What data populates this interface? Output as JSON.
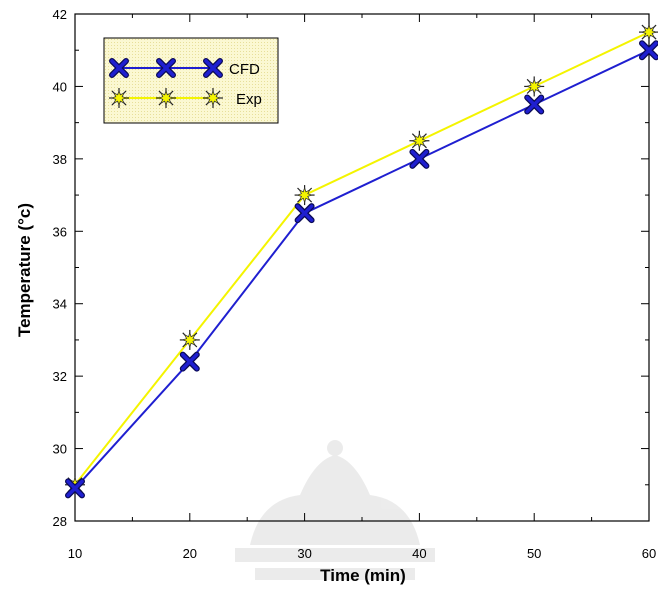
{
  "chart_data": {
    "type": "line",
    "title": "",
    "xlabel": "Time (min)",
    "ylabel": "Temperature (°c)",
    "xlim": [
      10,
      60
    ],
    "ylim": [
      28,
      42
    ],
    "xticks": [
      10,
      20,
      30,
      40,
      50,
      60
    ],
    "yticks": [
      28,
      30,
      32,
      34,
      36,
      38,
      40,
      42
    ],
    "grid": false,
    "legend_position": "top-left",
    "x": [
      10,
      20,
      30,
      40,
      50,
      60
    ],
    "series": [
      {
        "name": "CFD",
        "values": [
          28.9,
          32.4,
          36.5,
          38.0,
          39.5,
          41.0
        ],
        "line_color": "#1f1fd0",
        "marker": "x-cross",
        "marker_color": "#1f1fd0"
      },
      {
        "name": "Exp",
        "values": [
          29.0,
          33.0,
          37.0,
          38.5,
          40.0,
          41.5
        ],
        "line_color": "#f4f400",
        "marker": "star-burst",
        "marker_color": "#f4f400"
      }
    ],
    "legend_background": "#fbf8d2"
  }
}
